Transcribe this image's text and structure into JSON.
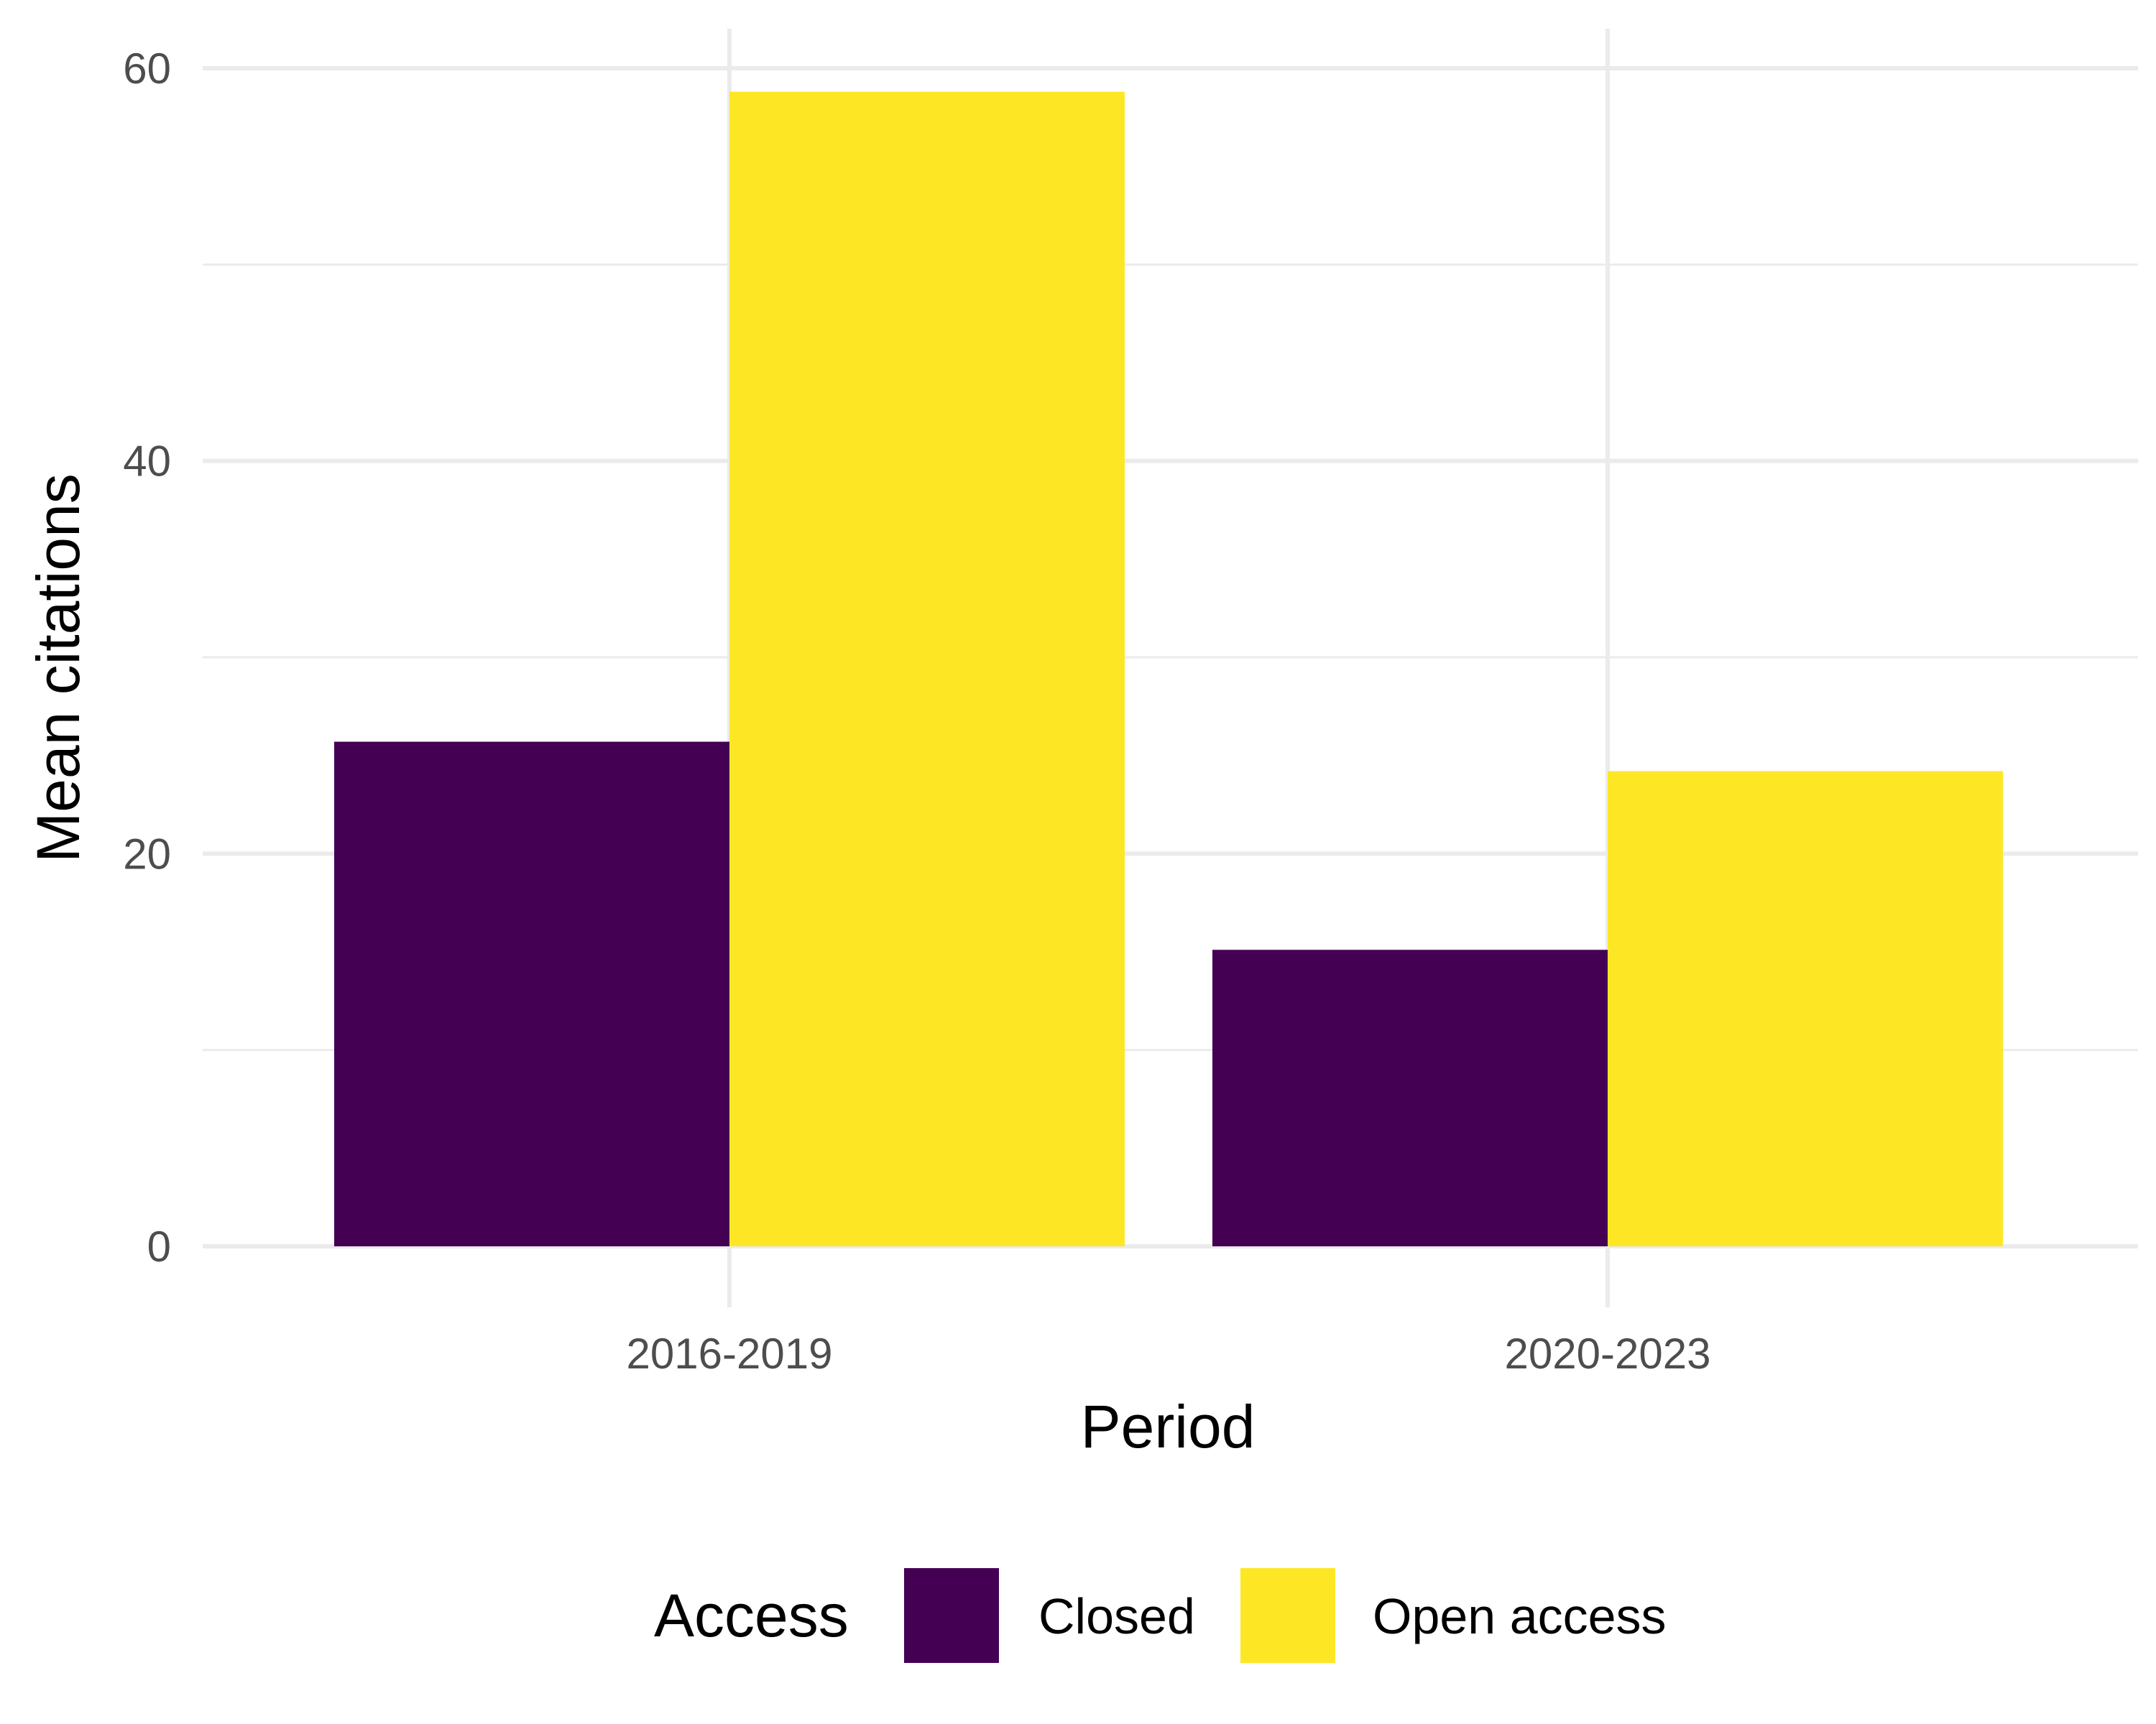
{
  "chart_data": {
    "type": "bar",
    "title": "",
    "xlabel": "Period",
    "ylabel": "Mean citations",
    "categories": [
      "2016-2019",
      "2020-2023"
    ],
    "series": [
      {
        "name": "Closed",
        "values": [
          25.7,
          15.1
        ],
        "color": "#440154"
      },
      {
        "name": "Open access",
        "values": [
          58.8,
          24.2
        ],
        "color": "#FDE725"
      }
    ],
    "ylim": [
      0,
      60
    ],
    "yticks": [
      0,
      20,
      40,
      60
    ],
    "grid": true,
    "legend": {
      "title": "Access",
      "position": "bottom"
    }
  }
}
